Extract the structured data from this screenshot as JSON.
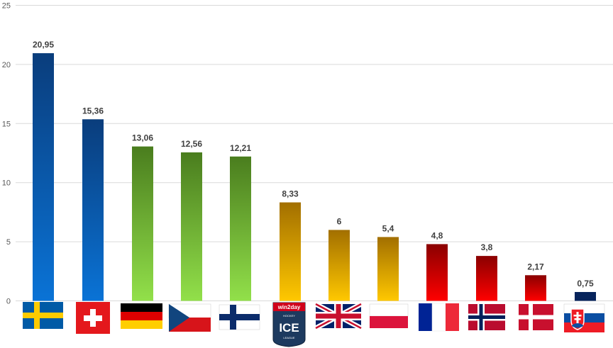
{
  "chart_data": {
    "type": "bar",
    "categories": [
      "Sweden",
      "Switzerland",
      "Germany",
      "Czech Republic",
      "Finland",
      "win2day ICE Hockey League",
      "United Kingdom",
      "Poland",
      "France",
      "Norway",
      "Denmark",
      "Slovakia"
    ],
    "values": [
      20.95,
      15.36,
      13.06,
      12.56,
      12.21,
      8.33,
      6,
      5.4,
      4.8,
      3.8,
      2.17,
      0.75
    ],
    "value_labels": [
      "20,95",
      "15,36",
      "13,06",
      "12,56",
      "12,21",
      "8,33",
      "6",
      "5,4",
      "4,8",
      "3,8",
      "2,17",
      "0,75"
    ],
    "category_icons": [
      "sweden-flag-icon",
      "switzerland-flag-icon",
      "germany-flag-icon",
      "czech-flag-icon",
      "finland-flag-icon",
      "ice-hockey-league-logo",
      "uk-flag-icon",
      "poland-flag-icon",
      "france-flag-icon",
      "norway-flag-icon",
      "denmark-flag-icon",
      "slovakia-flag-icon"
    ],
    "ylim": [
      0,
      25
    ],
    "yticks": [
      0,
      5,
      10,
      15,
      20,
      25
    ],
    "grid": true,
    "title": "",
    "xlabel": "",
    "ylabel": "",
    "colors": {
      "blue": [
        "#0a3d7c",
        "#0a73d6"
      ],
      "green": [
        "#4a7d1e",
        "#92e04a"
      ],
      "gold": [
        "#a26f00",
        "#ffc800"
      ],
      "red": [
        "#8a0000",
        "#ff0000"
      ],
      "navy": [
        "#07245c",
        "#07245c"
      ]
    },
    "bar_color_groups": [
      "blue",
      "blue",
      "green",
      "green",
      "green",
      "gold",
      "gold",
      "gold",
      "red",
      "red",
      "red",
      "navy"
    ]
  }
}
